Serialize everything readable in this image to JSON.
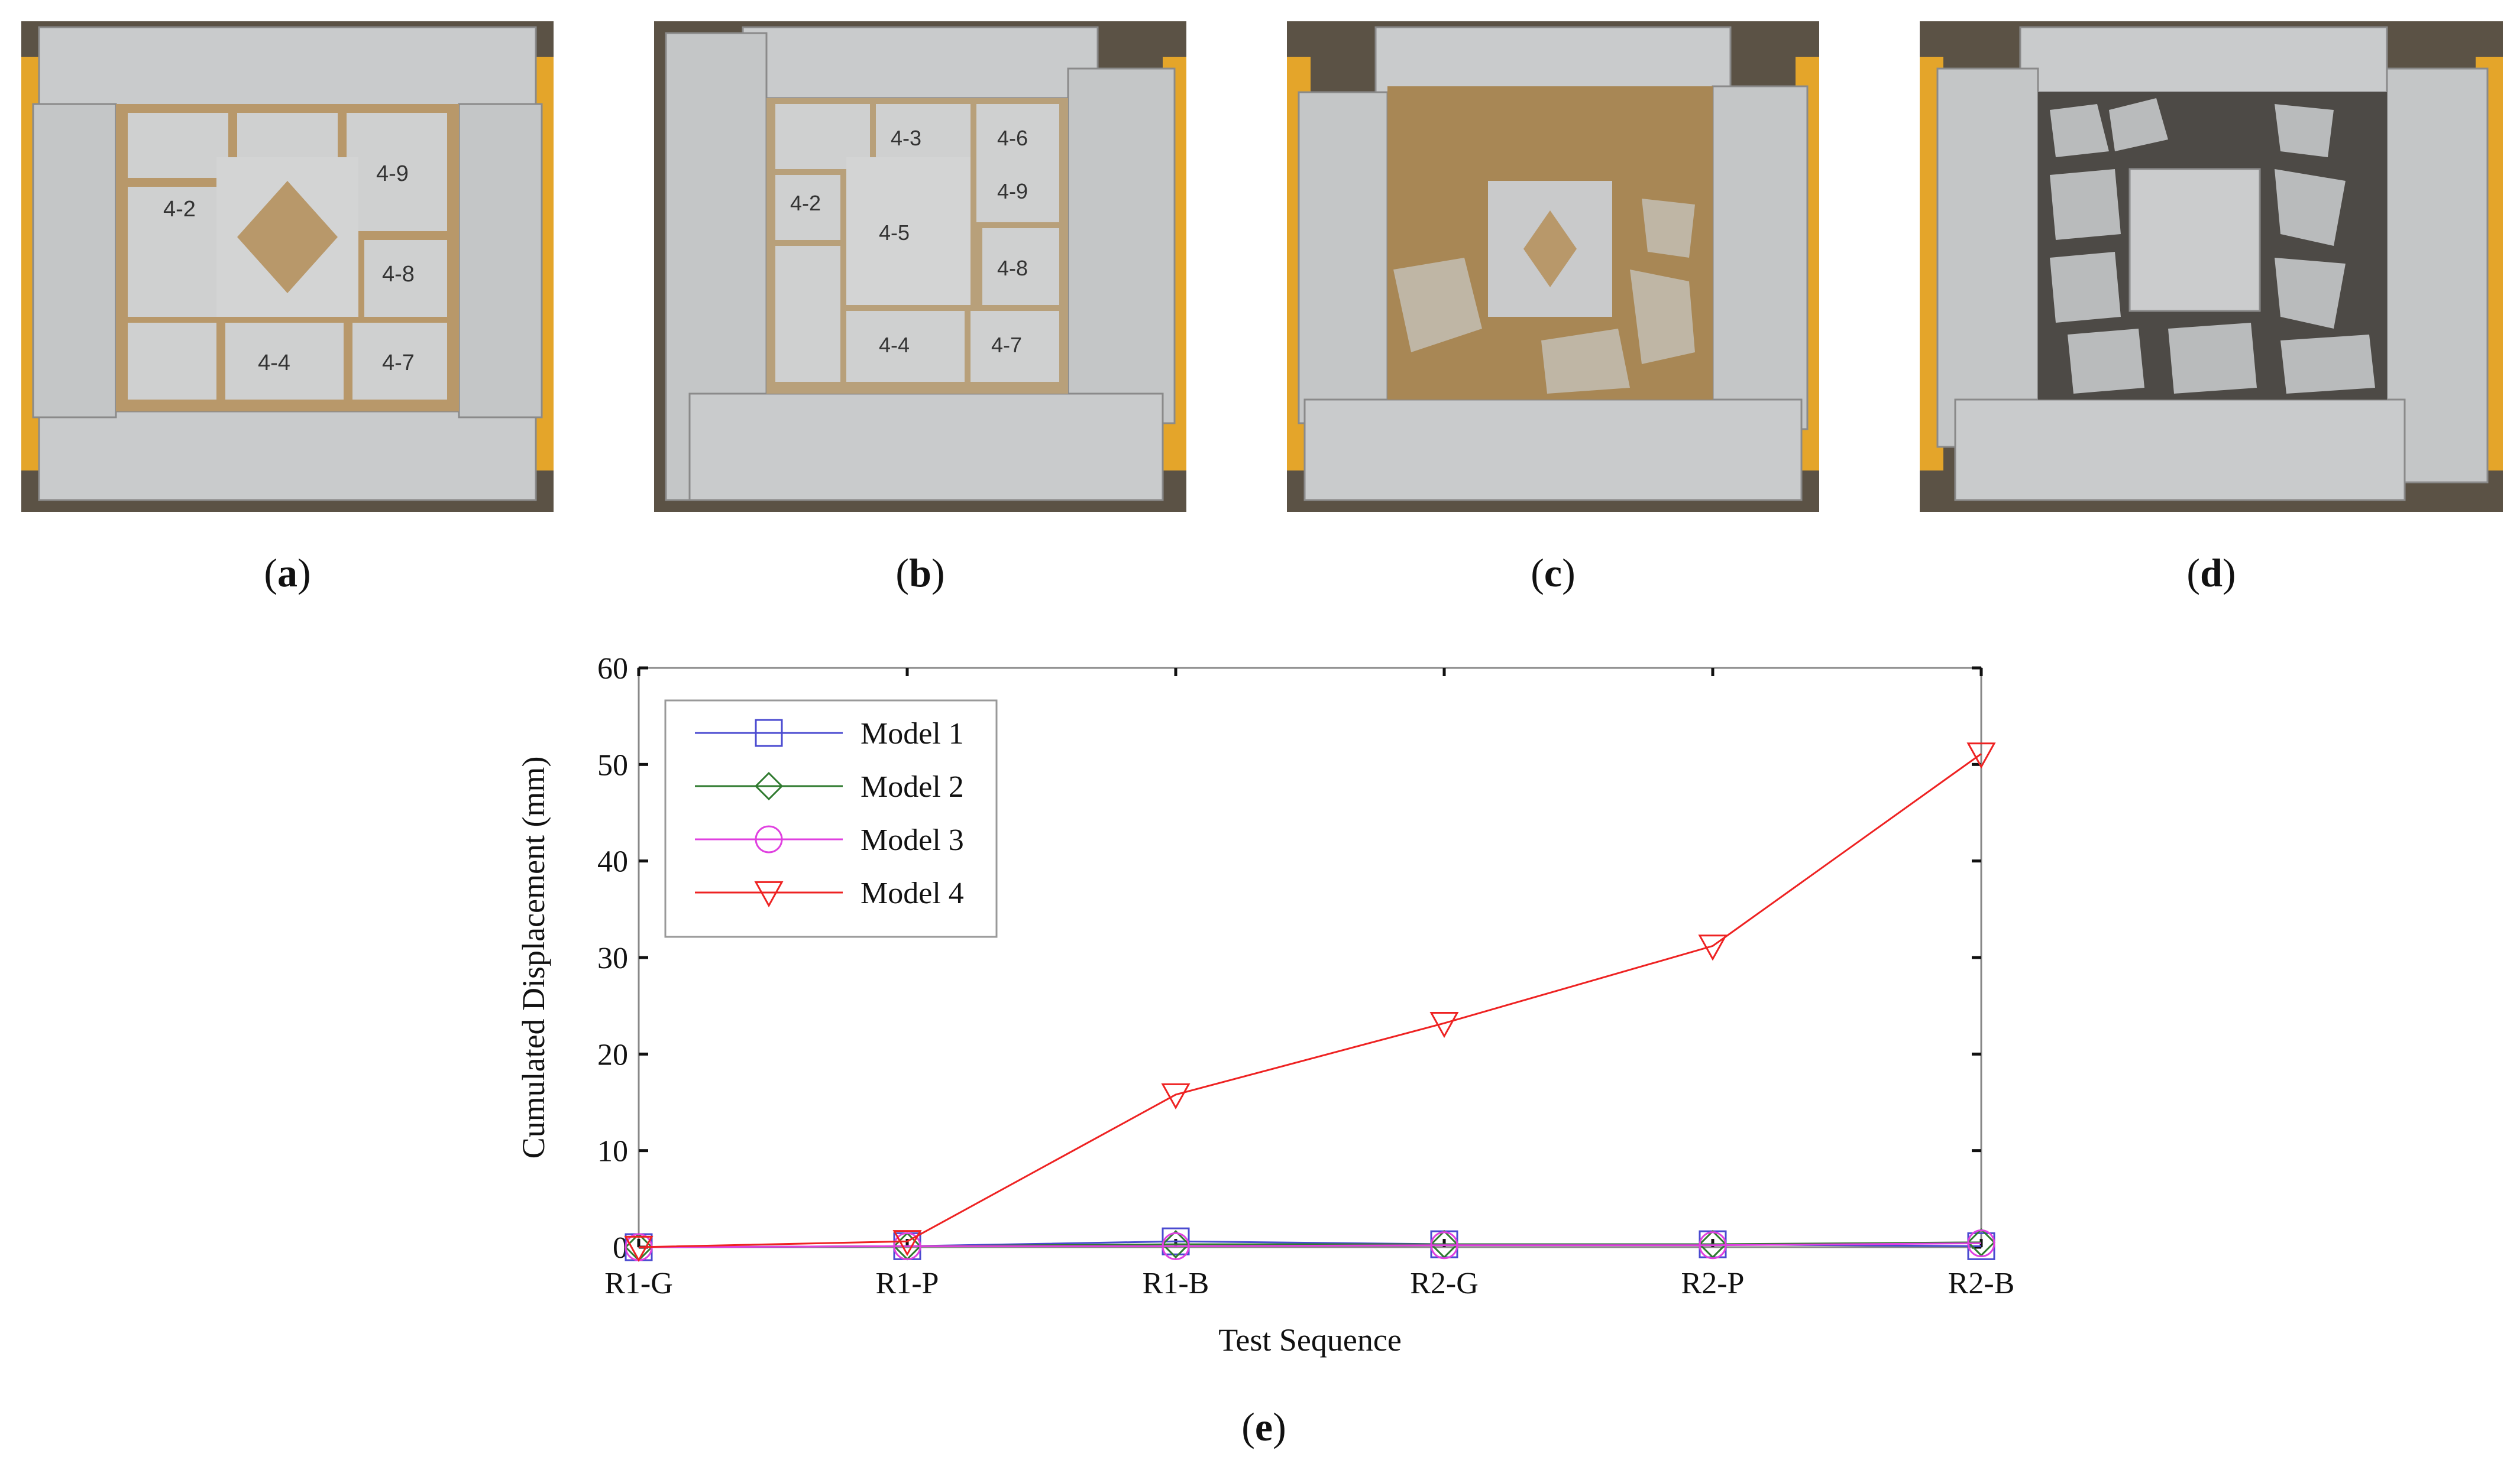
{
  "panels": [
    {
      "id": "a",
      "label": "a"
    },
    {
      "id": "b",
      "label": "b"
    },
    {
      "id": "c",
      "label": "c"
    },
    {
      "id": "d",
      "label": "d"
    },
    {
      "id": "e",
      "label": "e"
    }
  ],
  "photo_labels": {
    "a": [
      "4-2",
      "4-7",
      "4-8",
      "4-4",
      "4-9"
    ],
    "b": [
      "4-2",
      "4-3",
      "4-6",
      "4-9",
      "4-5",
      "4-8",
      "4-4",
      "4-7"
    ]
  },
  "colors": {
    "model1": "#4a4ad0",
    "model2": "#2f7a2f",
    "model3": "#e040e0",
    "model4": "#ee2222",
    "stone": "#c9cbcc",
    "sand": "#b8986a",
    "frame": "#e4a52a"
  },
  "chart_data": {
    "type": "line",
    "title": "",
    "xlabel": "Test Sequence",
    "ylabel": "Cumulated Displacement (mm)",
    "categories": [
      "R1-G",
      "R1-P",
      "R1-B",
      "R2-G",
      "R2-P",
      "R2-B"
    ],
    "ylim": [
      0,
      60
    ],
    "yticks": [
      0,
      10,
      20,
      30,
      40,
      50,
      60
    ],
    "legend_position": "top-left",
    "grid": false,
    "series": [
      {
        "name": "Model 1",
        "marker": "square",
        "color": "#4a4ad0",
        "values": [
          0,
          0.1,
          0.6,
          0.3,
          0.3,
          0.1
        ]
      },
      {
        "name": "Model 2",
        "marker": "diamond",
        "color": "#2f7a2f",
        "values": [
          0,
          0.1,
          0.3,
          0.3,
          0.3,
          0.5
        ]
      },
      {
        "name": "Model 3",
        "marker": "circle",
        "color": "#e040e0",
        "values": [
          0,
          0.1,
          0.1,
          0.2,
          0.2,
          0.4
        ]
      },
      {
        "name": "Model 4",
        "marker": "triangle",
        "color": "#ee2222",
        "values": [
          0,
          0.6,
          15.8,
          23.2,
          31.2,
          51.1
        ]
      }
    ]
  }
}
